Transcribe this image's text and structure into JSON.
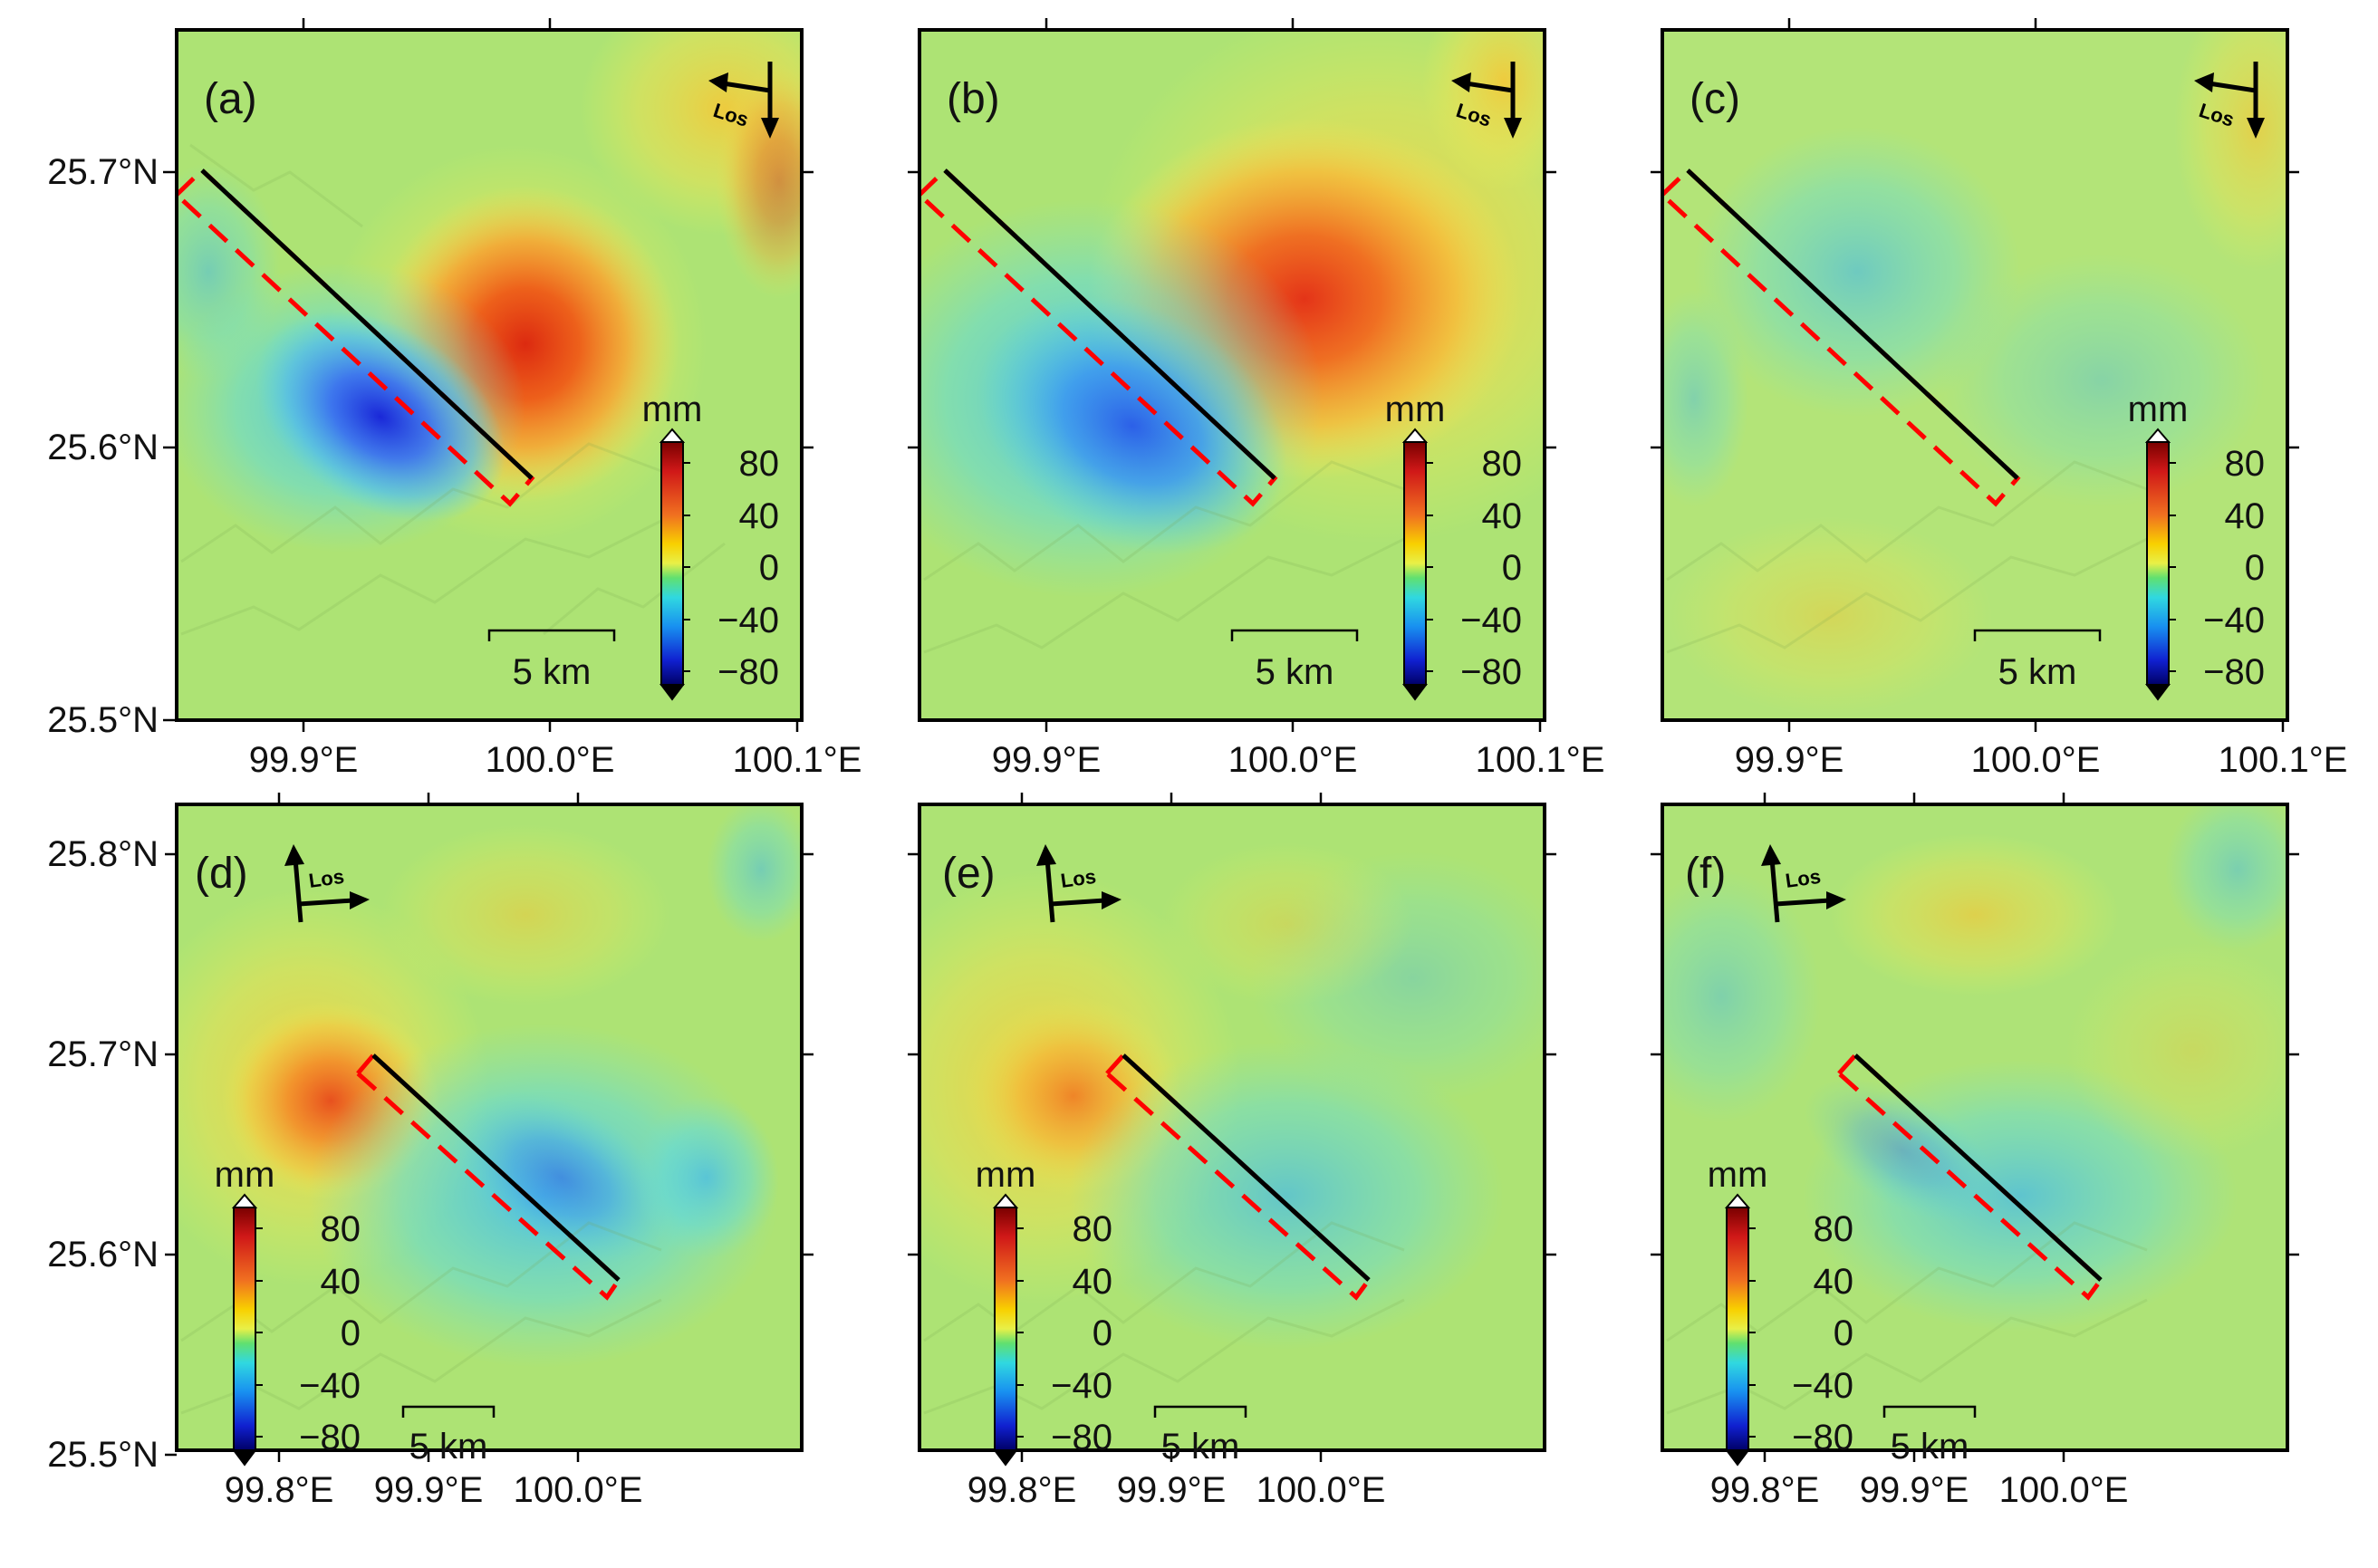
{
  "figure": {
    "colorbar": {
      "unit": "mm",
      "range": [
        -100,
        100
      ],
      "ticks": [
        "80",
        "40",
        "0",
        "−40",
        "−80"
      ],
      "colors": [
        "#ffffff",
        "#7a0000",
        "#d01818",
        "#f07020",
        "#f8d000",
        "#e8f048",
        "#60e070",
        "#30d8e0",
        "#1890f0",
        "#1020d0",
        "#000066",
        "#000000"
      ]
    },
    "scale_bar_label": "5 km",
    "los_label": "Los",
    "panels": [
      {
        "id": "a",
        "label": "(a)",
        "row": "top",
        "orbit": "descending",
        "y_ticks": [
          "25.7°N",
          "25.6°N",
          "25.5°N"
        ],
        "x_ticks": [
          "99.9°E",
          "100.0°E",
          "100.1°E"
        ]
      },
      {
        "id": "b",
        "label": "(b)",
        "row": "top",
        "orbit": "descending",
        "y_ticks": [],
        "x_ticks": [
          "99.9°E",
          "100.0°E",
          "100.1°E"
        ]
      },
      {
        "id": "c",
        "label": "(c)",
        "row": "top",
        "orbit": "descending",
        "y_ticks": [],
        "x_ticks": [
          "99.9°E",
          "100.0°E",
          "100.1°E"
        ]
      },
      {
        "id": "d",
        "label": "(d)",
        "row": "bottom",
        "orbit": "ascending",
        "y_ticks": [
          "25.8°N",
          "25.7°N",
          "25.6°N",
          "25.5°N"
        ],
        "x_ticks": [
          "99.8°E",
          "99.9°E",
          "100.0°E"
        ]
      },
      {
        "id": "e",
        "label": "(e)",
        "row": "bottom",
        "orbit": "ascending",
        "y_ticks": [],
        "x_ticks": [
          "99.8°E",
          "99.9°E",
          "100.0°E"
        ]
      },
      {
        "id": "f",
        "label": "(f)",
        "row": "bottom",
        "orbit": "ascending",
        "y_ticks": [],
        "x_ticks": [
          "99.8°E",
          "99.9°E",
          "100.0°E"
        ]
      }
    ]
  }
}
